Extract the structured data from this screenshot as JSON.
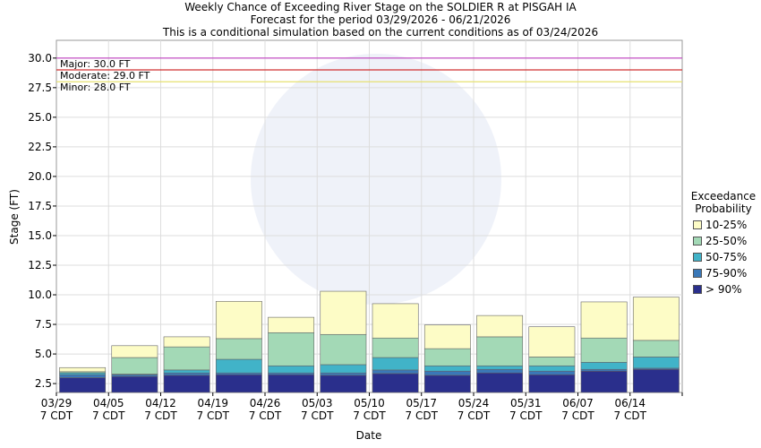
{
  "chart_data": {
    "type": "stage-bar",
    "title": "Weekly Chance of Exceeding River Stage on the SOLDIER R at PISGAH IA",
    "subtitle": "Forecast for the period 03/29/2026 - 06/21/2026",
    "note": "This is a conditional simulation based on the current conditions as of 03/24/2026",
    "x_label": "Date",
    "y_label": "Stage (FT)",
    "categories": [
      "03/29",
      "04/05",
      "04/12",
      "04/19",
      "04/26",
      "05/03",
      "05/10",
      "05/17",
      "05/24",
      "05/31",
      "06/07",
      "06/14"
    ],
    "x_time_label": "7 CDT",
    "legend_title": "Exceedance Probability",
    "series": [
      {
        "name": "> 90%",
        "color": "#2a2f8c",
        "values": [
          3.0,
          3.1,
          3.2,
          3.25,
          3.25,
          3.2,
          3.35,
          3.2,
          3.4,
          3.25,
          3.55,
          3.7
        ]
      },
      {
        "name": "75-90%",
        "color": "#3a78b8",
        "values": [
          3.25,
          3.25,
          3.4,
          3.4,
          3.4,
          3.4,
          3.65,
          3.55,
          3.7,
          3.55,
          3.7,
          3.8
        ]
      },
      {
        "name": "50-75%",
        "color": "#41b3c8",
        "values": [
          3.4,
          3.3,
          3.65,
          4.55,
          4.0,
          4.1,
          4.7,
          4.0,
          4.0,
          4.0,
          4.3,
          4.75
        ]
      },
      {
        "name": "25-50%",
        "color": "#a3d9b6",
        "values": [
          3.5,
          4.7,
          5.6,
          6.3,
          6.8,
          6.65,
          6.35,
          5.45,
          6.45,
          4.75,
          6.35,
          6.15
        ]
      },
      {
        "name": "10-25%",
        "color": "#fdfcc6",
        "values": [
          3.85,
          5.7,
          6.45,
          9.45,
          8.1,
          10.3,
          9.25,
          7.45,
          8.25,
          7.3,
          9.4,
          9.8
        ]
      }
    ],
    "thresholds": [
      {
        "label": "Major: 30.0 FT",
        "value": 30.0,
        "color": "#c040c0"
      },
      {
        "label": "Moderate: 29.0 FT",
        "value": 29.0,
        "color": "#d03030"
      },
      {
        "label": "Minor: 28.0 FT",
        "value": 28.0,
        "color": "#e6e070"
      }
    ],
    "ylim": [
      1.75,
      31.5
    ],
    "yticks": [
      2.5,
      {
        "value": 5,
        "label": "5.0"
      },
      7.5,
      {
        "value": 10,
        "label": "10.0"
      },
      12.5,
      {
        "value": 15,
        "label": "15.0"
      },
      17.5,
      {
        "value": 20,
        "label": "20.0"
      },
      22.5,
      {
        "value": 25,
        "label": "25.0"
      },
      27.5,
      {
        "value": 30,
        "label": "30.0"
      }
    ],
    "grid": true
  }
}
